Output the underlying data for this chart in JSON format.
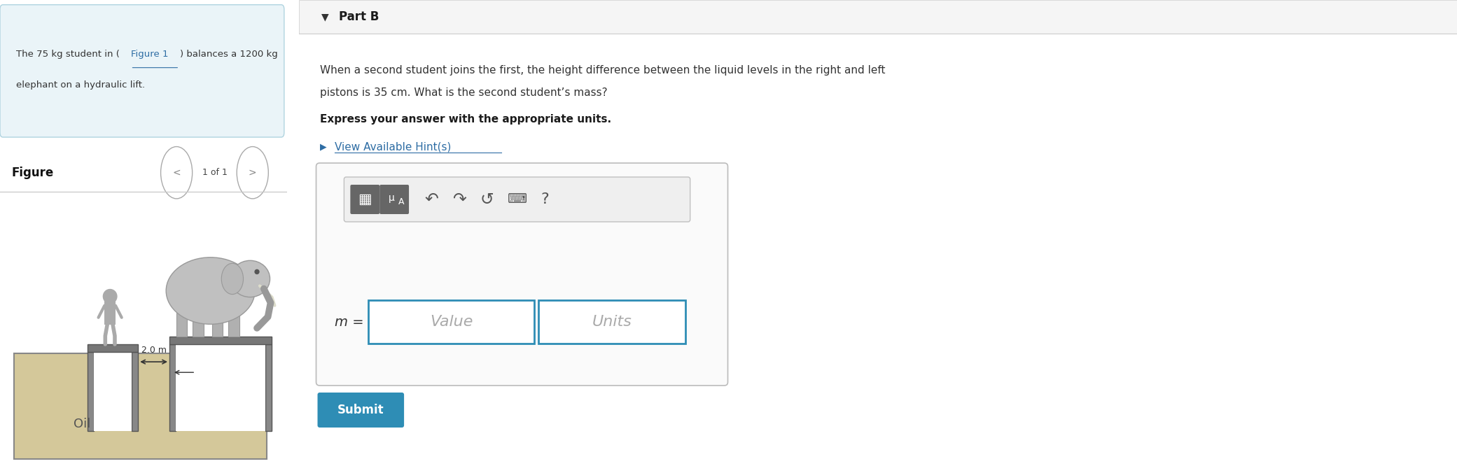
{
  "bg_color": "#ffffff",
  "left_panel_bg": "#eaf4f8",
  "figure_label": "Figure",
  "nav_text": "1 of 1",
  "oil_label": "Oil",
  "measure_label": "2.0 m",
  "part_b_label": "Part B",
  "part_b_line1": "When a second student joins the first, the height difference between the liquid levels in the right and left",
  "part_b_line2": "pistons is 35 cm. What is the second student’s mass?",
  "bold_instruction": "Express your answer with the appropriate units.",
  "hint_text": "View Available Hint(s)",
  "input_label": "m =",
  "value_placeholder": "Value",
  "units_placeholder": "Units",
  "submit_text": "Submit",
  "submit_color": "#2e8db5",
  "submit_text_color": "#ffffff",
  "hint_color": "#2e6da4",
  "link_color": "#2e6da4",
  "divider_color": "#cccccc",
  "toolbar_icon_bg": "#666666",
  "input_border_color": "#2e8db5",
  "outer_box_border": "#bbbbbb",
  "panel_border_color": "#b0d4e0",
  "figure_nav_border": "#aaaaaa",
  "piston_fill": "#d4c89a",
  "person_color": "#aaaaaa",
  "elephant_body_color": "#c0c0c0",
  "elephant_leg_color": "#b0b0b0"
}
